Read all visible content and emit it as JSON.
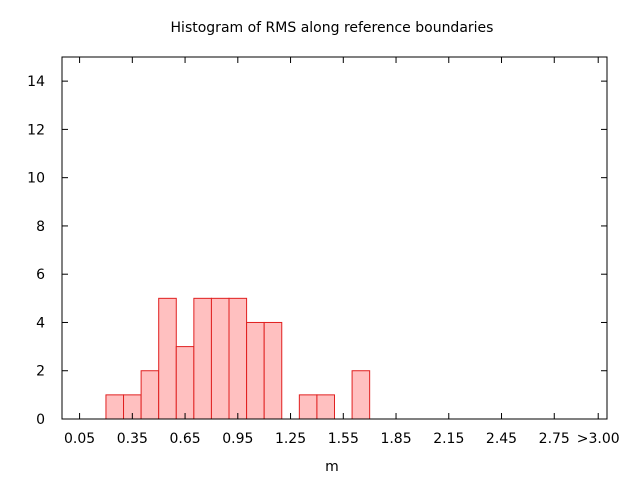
{
  "chart_data": {
    "type": "bar",
    "title": "Histogram of RMS along reference boundaries",
    "xlabel": "m",
    "ylabel": "",
    "x_tick_labels": [
      "0.05",
      "0.35",
      "0.65",
      "0.95",
      "1.25",
      "1.55",
      "1.85",
      "2.15",
      "2.45",
      "2.75",
      ">3.00"
    ],
    "x_tick_values": [
      0.05,
      0.35,
      0.65,
      0.95,
      1.25,
      1.55,
      1.85,
      2.15,
      2.45,
      2.75,
      3.0
    ],
    "y_tick_labels": [
      "0",
      "2",
      "4",
      "6",
      "8",
      "10",
      "12",
      "14"
    ],
    "y_tick_values": [
      0,
      2,
      4,
      6,
      8,
      10,
      12,
      14
    ],
    "xlim": [
      -0.05,
      3.05
    ],
    "ylim": [
      0,
      15
    ],
    "bin_width": 0.1,
    "bins": [
      {
        "x": 0.25,
        "count": 1
      },
      {
        "x": 0.35,
        "count": 1
      },
      {
        "x": 0.45,
        "count": 2
      },
      {
        "x": 0.55,
        "count": 5
      },
      {
        "x": 0.65,
        "count": 3
      },
      {
        "x": 0.75,
        "count": 5
      },
      {
        "x": 0.85,
        "count": 5
      },
      {
        "x": 0.95,
        "count": 5
      },
      {
        "x": 1.05,
        "count": 4
      },
      {
        "x": 1.15,
        "count": 4
      },
      {
        "x": 1.35,
        "count": 1
      },
      {
        "x": 1.45,
        "count": 1
      },
      {
        "x": 1.65,
        "count": 2
      }
    ],
    "grid": false,
    "legend": "none",
    "bar_fill": "#ffc0c0",
    "bar_stroke": "#e02020"
  }
}
